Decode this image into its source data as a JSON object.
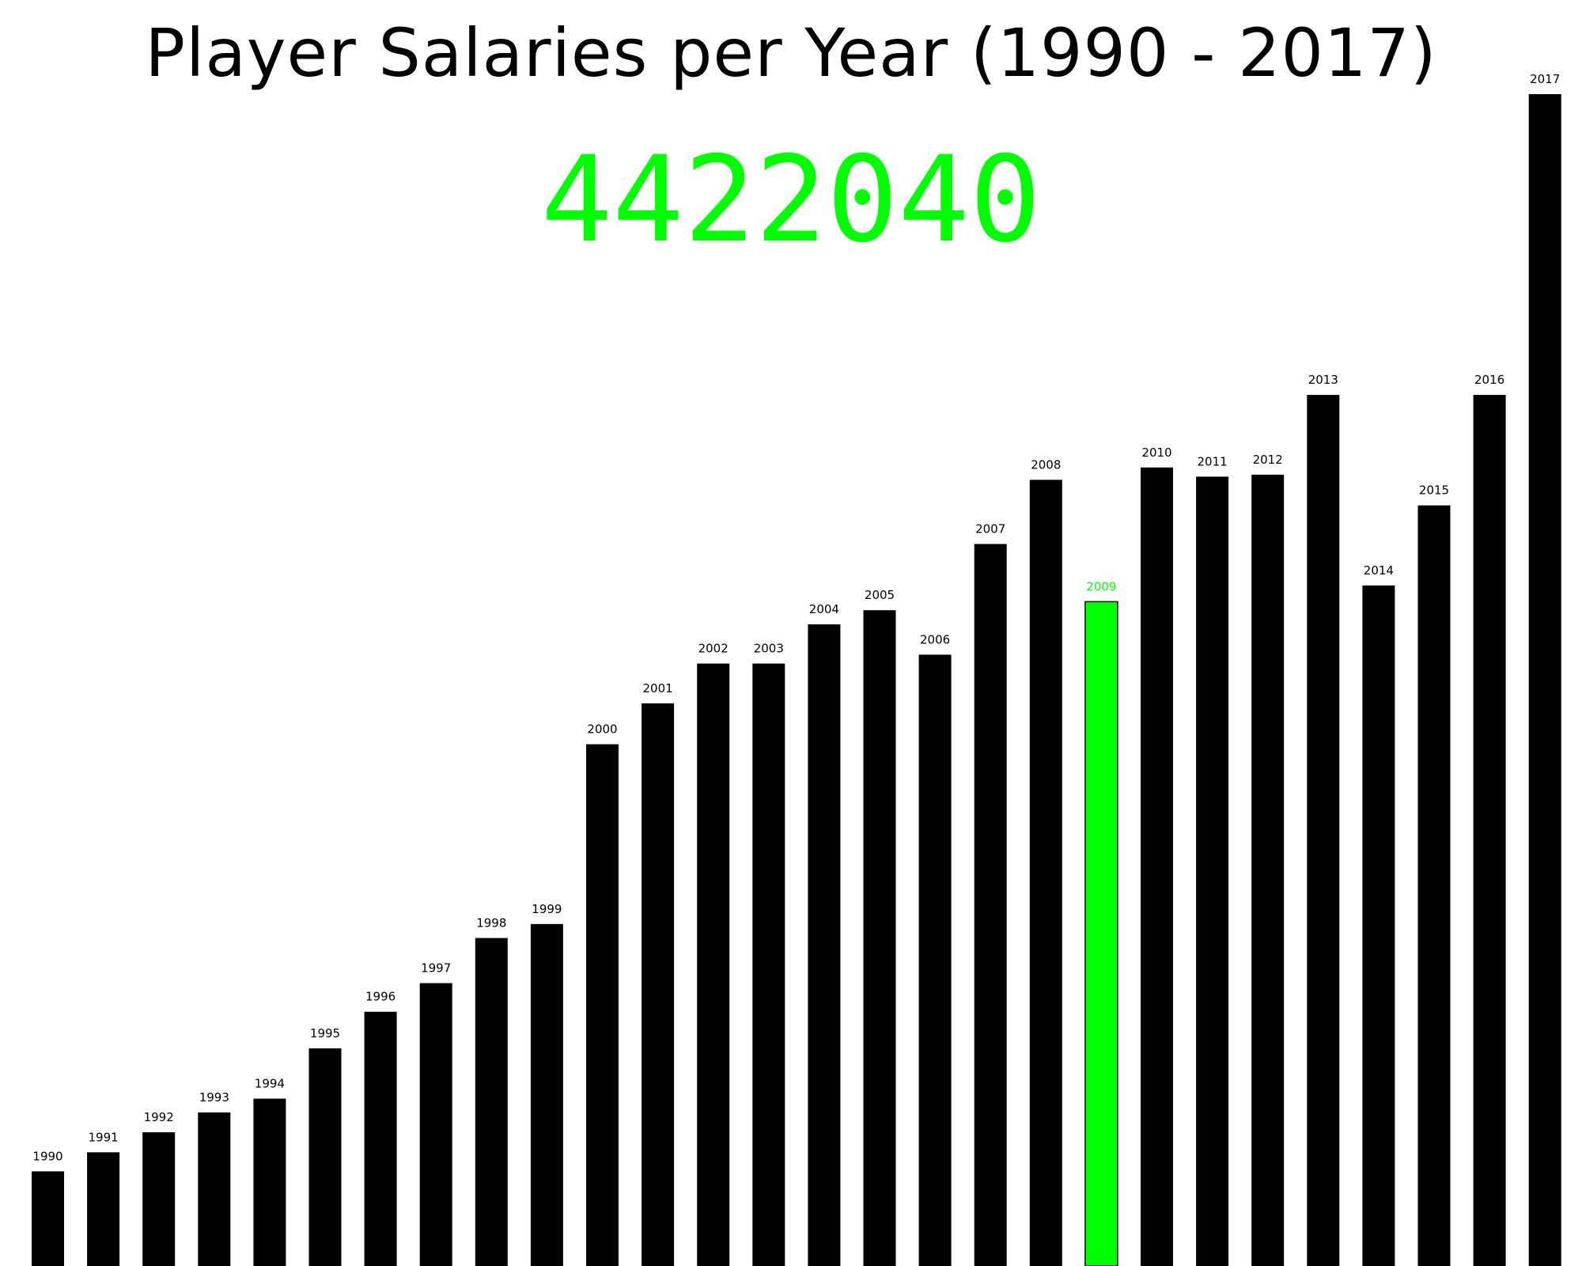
{
  "title": "Player Salaries per Year (1990 - 2017)",
  "hover_value": "4422040",
  "colors": {
    "bar": "#000000",
    "highlight": "#00ff00",
    "highlight_stroke": "#000000",
    "label": "#000000"
  },
  "chart_data": {
    "type": "bar",
    "title": "Player Salaries per Year (1990 - 2017)",
    "xlabel": "",
    "ylabel": "",
    "grid": false,
    "ylim": [
      0,
      7900000
    ],
    "highlighted": "2009",
    "categories": [
      "1990",
      "1991",
      "1992",
      "1993",
      "1994",
      "1995",
      "1996",
      "1997",
      "1998",
      "1999",
      "2000",
      "2001",
      "2002",
      "2003",
      "2004",
      "2005",
      "2006",
      "2007",
      "2008",
      "2009",
      "2010",
      "2011",
      "2012",
      "2013",
      "2014",
      "2015",
      "2016",
      "2017"
    ],
    "values": [
      630000,
      757000,
      890000,
      1022000,
      1114000,
      1449000,
      1692000,
      1883000,
      2183000,
      2276000,
      3473000,
      3745000,
      4010000,
      4010000,
      4271000,
      4365000,
      4069000,
      4806000,
      5233000,
      4422040,
      5315000,
      5254000,
      5267000,
      5798000,
      4530000,
      5063000,
      5798000,
      7800000
    ]
  }
}
